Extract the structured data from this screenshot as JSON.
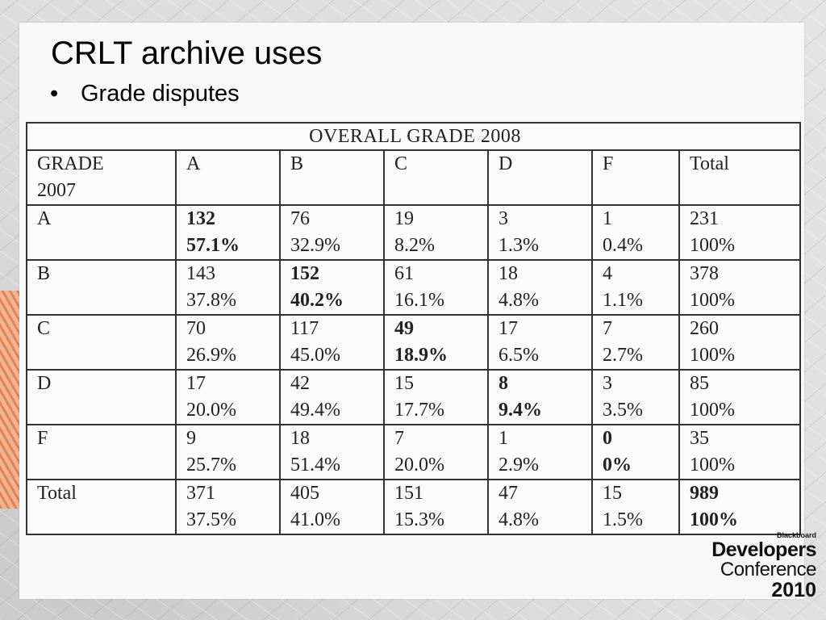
{
  "slide": {
    "title": "CRLT archive uses",
    "bullet": "Grade disputes"
  },
  "table": {
    "caption": "OVERALL GRADE 2008",
    "header": {
      "row_label_line1": "GRADE",
      "row_label_line2": "2007",
      "columns": [
        "A",
        "B",
        "C",
        "D",
        "F",
        "Total"
      ]
    },
    "rows": [
      {
        "label": "A",
        "cells": [
          {
            "n": "132",
            "p": "57.1%",
            "bold": true
          },
          {
            "n": "76",
            "p": "32.9%",
            "bold": false
          },
          {
            "n": "19",
            "p": "8.2%",
            "bold": false
          },
          {
            "n": "3",
            "p": "1.3%",
            "bold": false
          },
          {
            "n": "1",
            "p": "0.4%",
            "bold": false
          },
          {
            "n": "231",
            "p": "100%",
            "bold": false
          }
        ]
      },
      {
        "label": "B",
        "cells": [
          {
            "n": "143",
            "p": "37.8%",
            "bold": false
          },
          {
            "n": "152",
            "p": "40.2%",
            "bold": true
          },
          {
            "n": "61",
            "p": "16.1%",
            "bold": false
          },
          {
            "n": "18",
            "p": "4.8%",
            "bold": false
          },
          {
            "n": "4",
            "p": "1.1%",
            "bold": false
          },
          {
            "n": "378",
            "p": "100%",
            "bold": false
          }
        ]
      },
      {
        "label": "C",
        "cells": [
          {
            "n": "70",
            "p": "26.9%",
            "bold": false
          },
          {
            "n": "117",
            "p": "45.0%",
            "bold": false
          },
          {
            "n": "49",
            "p": "18.9%",
            "bold": true
          },
          {
            "n": "17",
            "p": "6.5%",
            "bold": false
          },
          {
            "n": "7",
            "p": "2.7%",
            "bold": false
          },
          {
            "n": "260",
            "p": "100%",
            "bold": false
          }
        ]
      },
      {
        "label": "D",
        "cells": [
          {
            "n": "17",
            "p": "20.0%",
            "bold": false
          },
          {
            "n": "42",
            "p": "49.4%",
            "bold": false
          },
          {
            "n": "15",
            "p": "17.7%",
            "bold": false
          },
          {
            "n": "8",
            "p": "9.4%",
            "bold": true
          },
          {
            "n": "3",
            "p": "3.5%",
            "bold": false
          },
          {
            "n": "85",
            "p": "100%",
            "bold": false
          }
        ]
      },
      {
        "label": "F",
        "cells": [
          {
            "n": "9",
            "p": "25.7%",
            "bold": false
          },
          {
            "n": "18",
            "p": "51.4%",
            "bold": false
          },
          {
            "n": "7",
            "p": "20.0%",
            "bold": false
          },
          {
            "n": "1",
            "p": "2.9%",
            "bold": false
          },
          {
            "n": "0",
            "p": "0%",
            "bold": true
          },
          {
            "n": "35",
            "p": "100%",
            "bold": false
          }
        ]
      },
      {
        "label": "Total",
        "cells": [
          {
            "n": "371",
            "p": "37.5%",
            "bold": false
          },
          {
            "n": "405",
            "p": "41.0%",
            "bold": false
          },
          {
            "n": "151",
            "p": "15.3%",
            "bold": false
          },
          {
            "n": "47",
            "p": "4.8%",
            "bold": false
          },
          {
            "n": "15",
            "p": "1.5%",
            "bold": false
          },
          {
            "n": "989",
            "p": "100%",
            "bold": true
          }
        ]
      }
    ]
  },
  "logo": {
    "brand": "Blackboard",
    "line1": "Developers",
    "line2": "Conference",
    "line3": "2010"
  }
}
